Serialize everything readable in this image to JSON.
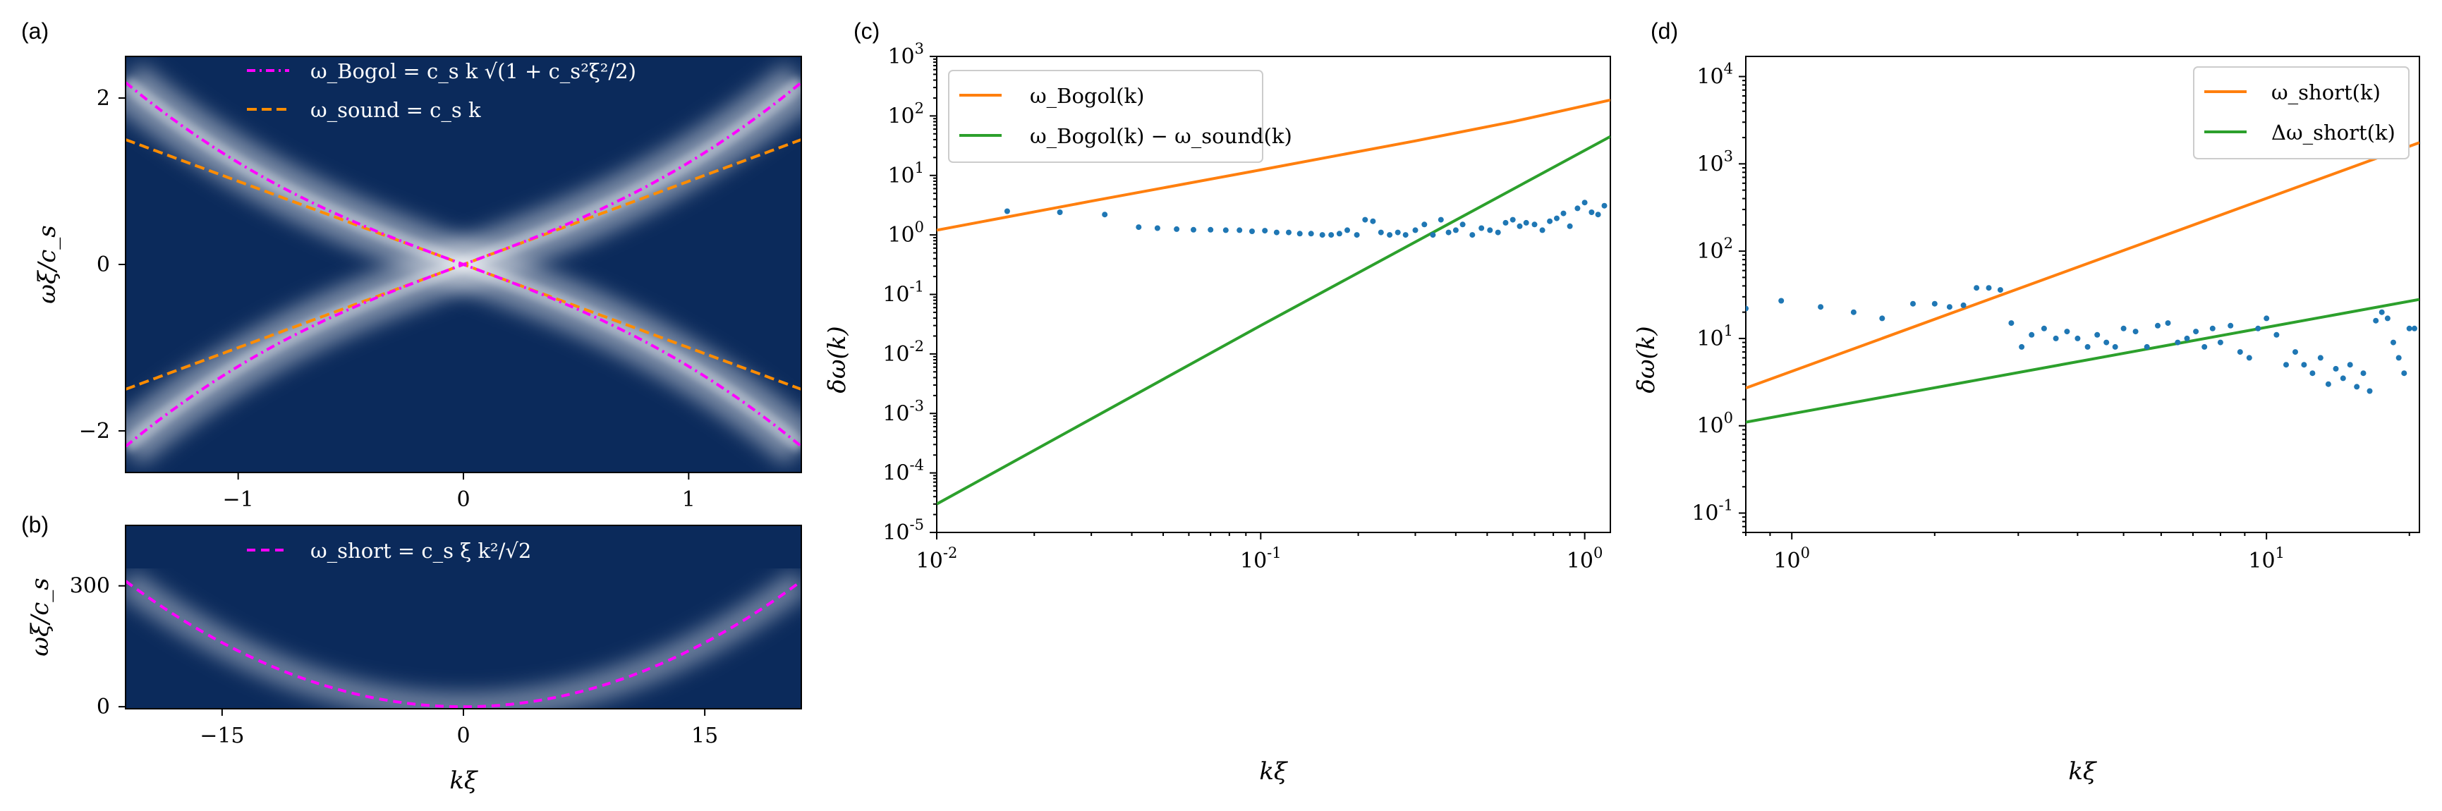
{
  "panels": {
    "a": {
      "label": "(a)",
      "ylabel": "ωξ/c_s",
      "yticks": [
        "2",
        "0",
        "−2"
      ],
      "xticks": [
        "−1",
        "0",
        "1"
      ],
      "legend": [
        "ω_Bogol = c_s k √(1 + c_s²ξ²/2)",
        "ω_sound = c_s k"
      ]
    },
    "b": {
      "label": "(b)",
      "ylabel": "ωξ/c_s",
      "xlabel": "kξ",
      "yticks": [
        "300",
        "0"
      ],
      "xticks": [
        "−15",
        "0",
        "15"
      ],
      "legend": [
        "ω_short = c_s ξ k²/√2"
      ]
    },
    "c": {
      "label": "(c)",
      "xlabel": "kξ",
      "ylabel": "δω(k)",
      "legend": [
        "ω_Bogol(k)",
        "ω_Bogol(k) − ω_sound(k)"
      ]
    },
    "d": {
      "label": "(d)",
      "xlabel": "kξ",
      "ylabel": "δω(k)",
      "legend": [
        "ω_short(k)",
        "Δω_short(k)"
      ]
    }
  },
  "colors": {
    "heatmap_bg": "#0b2a5b",
    "bogol": "#ff00ff",
    "sound": "#ff8c00",
    "orange": "#ff7f0e",
    "green": "#2ca02c",
    "points": "#1f77b4"
  },
  "chart_data": [
    {
      "type": "heatmap",
      "panel": "a",
      "xlim": [
        -1.5,
        1.5
      ],
      "ylim": [
        -2.5,
        2.5
      ],
      "series": [
        {
          "name": "ω_Bogol = c_s k √(1 + c_s²ξ²/2)",
          "style": "dash-dot",
          "formula": "k*sqrt(1+k^2/2)"
        },
        {
          "name": "ω_sound = c_s k",
          "style": "dashed",
          "formula": "k"
        }
      ]
    },
    {
      "type": "heatmap",
      "panel": "b",
      "xlim": [
        -21,
        21
      ],
      "ylim": [
        -5,
        450
      ],
      "series": [
        {
          "name": "ω_short = c_s ξ k²/√2",
          "style": "dashed",
          "formula": "k^2/sqrt(2)"
        }
      ]
    },
    {
      "type": "scatter",
      "panel": "c",
      "xscale": "log",
      "yscale": "log",
      "xlim": [
        0.01,
        1.2
      ],
      "ylim": [
        1e-05,
        1000
      ],
      "xticks": [
        0.01,
        0.1,
        1
      ],
      "yticks": [
        1e-05,
        0.0001,
        0.001,
        0.01,
        0.1,
        1,
        10,
        100,
        1000
      ],
      "lines": [
        {
          "name": "ω_Bogol(k)",
          "x": [
            0.01,
            0.03,
            0.1,
            0.3,
            0.6,
            1.2
          ],
          "y": [
            1.2,
            3.7,
            12.4,
            38,
            80,
            185
          ]
        },
        {
          "name": "ω_Bogol(k) − ω_sound(k)",
          "x": [
            0.01,
            0.1,
            1.2
          ],
          "y": [
            3e-05,
            0.03,
            45
          ]
        }
      ],
      "points": {
        "x": [
          0.0165,
          0.024,
          0.033,
          0.042,
          0.048,
          0.055,
          0.062,
          0.07,
          0.078,
          0.086,
          0.094,
          0.103,
          0.112,
          0.122,
          0.132,
          0.143,
          0.155,
          0.165,
          0.175,
          0.185,
          0.198,
          0.21,
          0.222,
          0.235,
          0.25,
          0.265,
          0.28,
          0.3,
          0.32,
          0.34,
          0.36,
          0.38,
          0.4,
          0.42,
          0.45,
          0.48,
          0.51,
          0.54,
          0.57,
          0.6,
          0.63,
          0.66,
          0.7,
          0.74,
          0.78,
          0.82,
          0.86,
          0.9,
          0.95,
          1.0,
          1.05,
          1.1,
          1.15
        ],
        "y": [
          2.5,
          2.4,
          2.2,
          1.35,
          1.3,
          1.25,
          1.22,
          1.22,
          1.2,
          1.2,
          1.15,
          1.18,
          1.1,
          1.1,
          1.05,
          1.05,
          1.0,
          1.0,
          1.05,
          1.2,
          1.0,
          1.8,
          1.7,
          1.1,
          1.0,
          1.1,
          1.0,
          1.2,
          1.5,
          1.0,
          1.8,
          1.1,
          1.2,
          1.5,
          1.0,
          1.3,
          1.2,
          1.1,
          1.6,
          1.8,
          1.4,
          1.6,
          1.5,
          1.2,
          1.7,
          1.9,
          2.3,
          1.4,
          2.8,
          3.5,
          2.4,
          2.2,
          3.1
        ]
      }
    },
    {
      "type": "scatter",
      "panel": "d",
      "xscale": "log",
      "yscale": "log",
      "xlim": [
        0.8,
        21
      ],
      "ylim": [
        0.06,
        17000
      ],
      "xticks": [
        1,
        10
      ],
      "yticks": [
        0.1,
        1,
        10,
        100,
        1000,
        10000
      ],
      "lines": [
        {
          "name": "ω_short(k)",
          "x": [
            0.8,
            21
          ],
          "y": [
            2.7,
            1750
          ]
        },
        {
          "name": "Δω_short(k)",
          "x": [
            0.8,
            21
          ],
          "y": [
            1.1,
            28
          ]
        }
      ],
      "points": {
        "x": [
          0.8,
          0.95,
          1.15,
          1.35,
          1.55,
          1.8,
          2.0,
          2.15,
          2.3,
          2.45,
          2.6,
          2.75,
          2.9,
          3.05,
          3.2,
          3.4,
          3.6,
          3.8,
          4.0,
          4.2,
          4.4,
          4.6,
          4.8,
          5.0,
          5.3,
          5.6,
          5.9,
          6.2,
          6.5,
          6.8,
          7.1,
          7.4,
          7.7,
          8.0,
          8.4,
          8.8,
          9.2,
          9.6,
          10.0,
          10.5,
          11.0,
          11.5,
          12.0,
          12.5,
          13.0,
          13.5,
          14.0,
          14.5,
          15.0,
          15.5,
          16.0,
          16.5,
          17.0,
          17.5,
          18.0,
          18.5,
          19.0,
          19.5,
          20.0,
          20.5
        ],
        "y": [
          22,
          27,
          23,
          20,
          17,
          25,
          25,
          23,
          24,
          38,
          38,
          36,
          15,
          8,
          11,
          13,
          10,
          12,
          10,
          8,
          11,
          9,
          8,
          13,
          12,
          8,
          14,
          15,
          9,
          10,
          12,
          8,
          13,
          9,
          14,
          7,
          6,
          13,
          17,
          11,
          5,
          7,
          5,
          4,
          6,
          3,
          4.5,
          3.5,
          5,
          2.8,
          4,
          2.5,
          16,
          20,
          17,
          9,
          6,
          4,
          13,
          13
        ]
      }
    }
  ]
}
